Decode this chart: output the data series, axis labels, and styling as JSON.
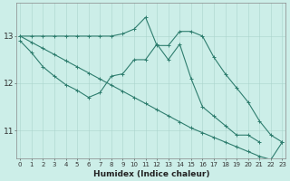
{
  "xlabel": "Humidex (Indice chaleur)",
  "background_color": "#cceee8",
  "line_color": "#2e7d6e",
  "grid_color": "#aad4cc",
  "x_values": [
    0,
    1,
    2,
    3,
    4,
    5,
    6,
    7,
    8,
    9,
    10,
    11,
    12,
    13,
    14,
    15,
    16,
    17,
    18,
    19,
    20,
    21,
    22,
    23
  ],
  "line_upper_y": [
    13.0,
    13.0,
    13.0,
    13.0,
    13.0,
    13.0,
    13.0,
    13.0,
    13.0,
    13.05,
    13.15,
    13.4,
    12.8,
    12.8,
    13.1,
    13.1,
    13.0,
    12.55,
    12.2,
    11.9,
    11.6,
    11.2,
    10.9,
    10.75
  ],
  "line_mid_y": [
    12.9,
    12.65,
    12.35,
    12.15,
    11.97,
    11.85,
    11.7,
    11.8,
    12.15,
    12.2,
    12.5,
    12.5,
    12.83,
    12.5,
    12.83,
    12.1,
    11.5,
    11.3,
    11.1,
    10.9,
    10.9,
    10.75,
    null,
    null
  ],
  "line_trend_y": [
    13.0,
    12.87,
    12.74,
    12.61,
    12.48,
    12.35,
    12.22,
    12.09,
    11.96,
    11.83,
    11.7,
    11.57,
    11.44,
    11.31,
    11.18,
    11.05,
    10.95,
    10.85,
    10.75,
    10.65,
    10.55,
    10.45,
    10.38,
    10.75
  ],
  "ylim": [
    10.4,
    13.7
  ],
  "yticks": [
    11,
    12,
    13
  ],
  "xticks": [
    0,
    1,
    2,
    3,
    4,
    5,
    6,
    7,
    8,
    9,
    10,
    11,
    12,
    13,
    14,
    15,
    16,
    17,
    18,
    19,
    20,
    21,
    22,
    23
  ]
}
